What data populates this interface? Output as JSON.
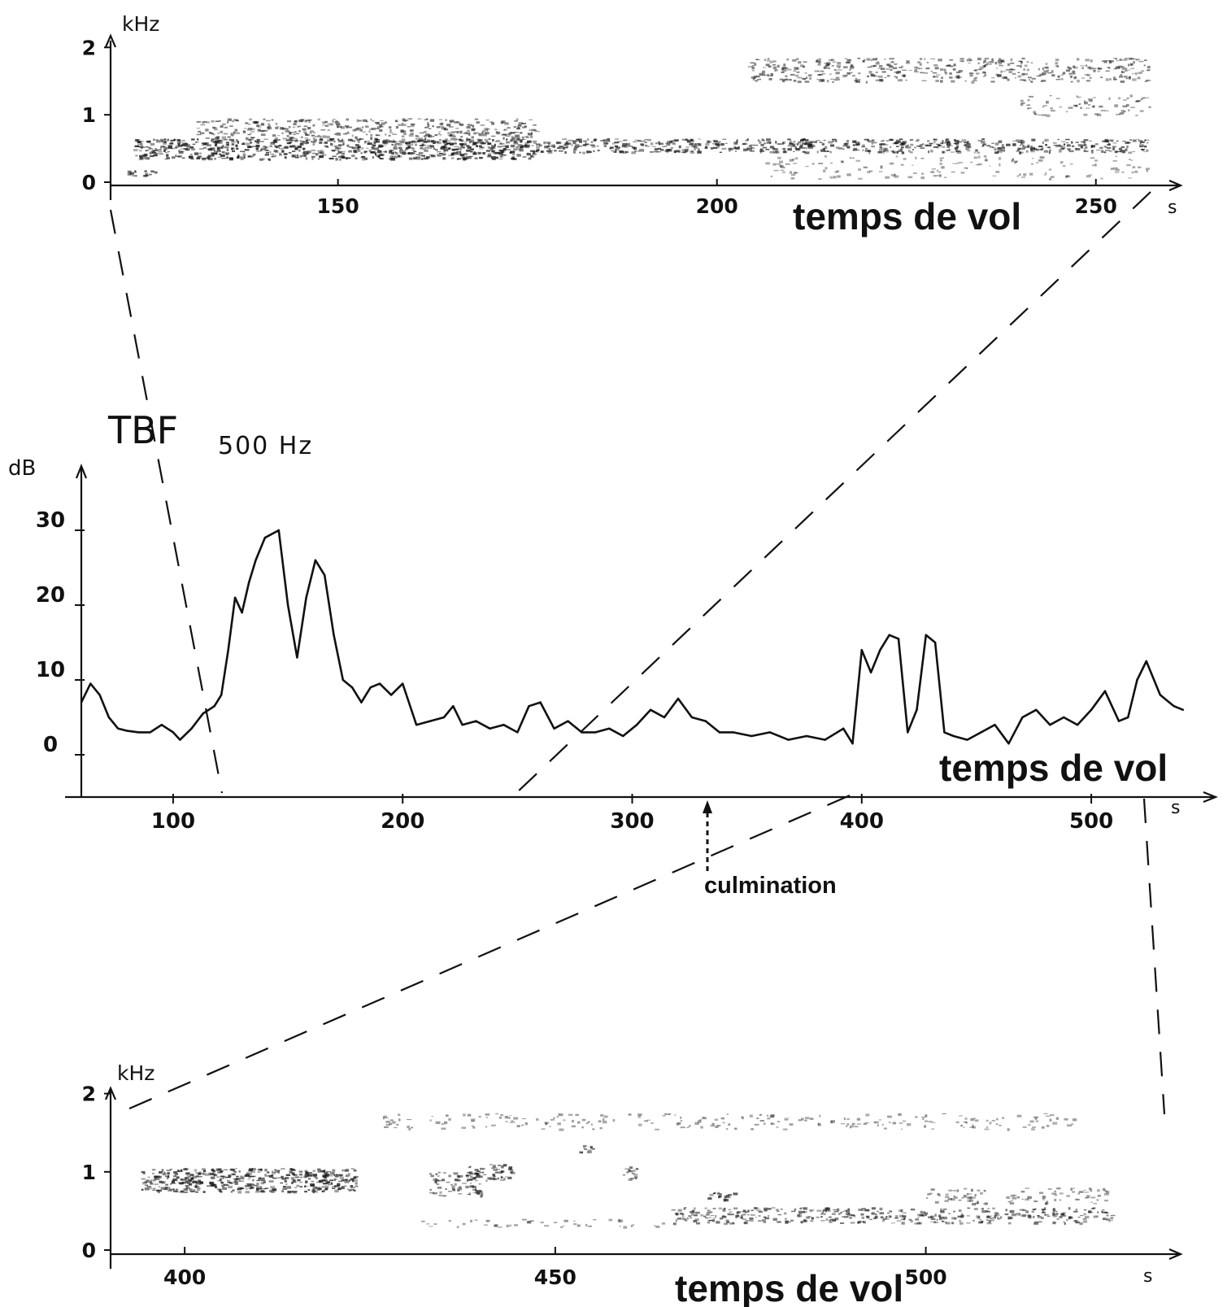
{
  "chart_data": [
    {
      "type": "heatmap",
      "ylabel": "kHz",
      "xlabel": "temps de vol",
      "x_unit": "s",
      "x_ticks": [
        "150",
        "200",
        "250"
      ],
      "y_ticks": [
        "0",
        "1",
        "2"
      ],
      "xlim": [
        120,
        257
      ],
      "ylim": [
        0,
        2.1
      ],
      "bands": [
        {
          "x": [
            122,
            126
          ],
          "y": [
            0.1,
            0.2
          ],
          "intensity": 0.7
        },
        {
          "x": [
            123,
            176
          ],
          "y": [
            0.35,
            0.65
          ],
          "intensity": 0.85
        },
        {
          "x": [
            131,
            176
          ],
          "y": [
            0.6,
            0.95
          ],
          "intensity": 0.5
        },
        {
          "x": [
            176,
            257
          ],
          "y": [
            0.45,
            0.65
          ],
          "intensity": 0.75
        },
        {
          "x": [
            204,
            257
          ],
          "y": [
            1.5,
            1.85
          ],
          "intensity": 0.45
        },
        {
          "x": [
            240,
            257
          ],
          "y": [
            1.0,
            1.3
          ],
          "intensity": 0.25
        },
        {
          "x": [
            206,
            257
          ],
          "y": [
            0.05,
            0.4
          ],
          "intensity": 0.15
        }
      ]
    },
    {
      "type": "line",
      "title": "TBF",
      "subtitle": "500 Hz",
      "ylabel": "dB",
      "xlabel": "temps de vol",
      "x_unit": "s",
      "x_ticks": [
        "100",
        "200",
        "300",
        "400",
        "500"
      ],
      "y_ticks": [
        "0",
        "10",
        "20",
        "30"
      ],
      "xlim": [
        60,
        540
      ],
      "ylim": [
        -5,
        33
      ],
      "annotation": {
        "text": "culmination",
        "x": 332
      },
      "x": [
        60,
        64,
        68,
        72,
        76,
        80,
        85,
        90,
        95,
        100,
        103,
        108,
        113,
        118,
        121,
        124,
        127,
        130,
        133,
        136,
        140,
        146,
        150,
        154,
        158,
        162,
        166,
        170,
        174,
        178,
        182,
        186,
        190,
        195,
        200,
        206,
        212,
        218,
        222,
        226,
        232,
        238,
        244,
        250,
        255,
        260,
        266,
        272,
        278,
        284,
        290,
        296,
        302,
        308,
        314,
        320,
        326,
        332,
        338,
        344,
        352,
        360,
        368,
        376,
        384,
        392,
        396,
        400,
        404,
        408,
        412,
        416,
        420,
        424,
        428,
        432,
        436,
        440,
        446,
        452,
        458,
        464,
        470,
        476,
        482,
        488,
        494,
        500,
        506,
        512,
        516,
        520,
        524,
        530,
        536,
        540
      ],
      "y": [
        7,
        9.5,
        8,
        5,
        3.5,
        3.2,
        3,
        3,
        4,
        3,
        2,
        3.5,
        5.5,
        6.5,
        8,
        14,
        21,
        19,
        23,
        26,
        29,
        30,
        20,
        13,
        21,
        26,
        24,
        16,
        10,
        9,
        7,
        9,
        9.5,
        8,
        9.5,
        4,
        4.5,
        5,
        6.5,
        4,
        4.5,
        3.5,
        4,
        3,
        6.5,
        7,
        3.5,
        4.5,
        3,
        3,
        3.5,
        2.5,
        4,
        6,
        5,
        7.5,
        5,
        4.5,
        3,
        3,
        2.5,
        3,
        2,
        2.5,
        2,
        3.5,
        1.5,
        14,
        11,
        14,
        16,
        15.5,
        3,
        6,
        16,
        15,
        3,
        2.5,
        2,
        3,
        4,
        1.5,
        5,
        6,
        4,
        5,
        4,
        6,
        8.5,
        4.5,
        5,
        10,
        12.5,
        8,
        6.5,
        6
      ]
    },
    {
      "type": "heatmap",
      "ylabel": "kHz",
      "xlabel": "temps de vol",
      "x_unit": "s",
      "x_ticks": [
        "400",
        "450",
        "500"
      ],
      "y_ticks": [
        "0",
        "1",
        "2"
      ],
      "xlim": [
        390,
        530
      ],
      "ylim": [
        0,
        2.1
      ],
      "bands": [
        {
          "x": [
            394,
            423
          ],
          "y": [
            0.75,
            1.05
          ],
          "intensity": 0.85
        },
        {
          "x": [
            433,
            440
          ],
          "y": [
            0.7,
            1.0
          ],
          "intensity": 0.55
        },
        {
          "x": [
            438,
            444
          ],
          "y": [
            0.9,
            1.1
          ],
          "intensity": 0.75
        },
        {
          "x": [
            453,
            455
          ],
          "y": [
            1.25,
            1.35
          ],
          "intensity": 0.8
        },
        {
          "x": [
            459,
            461
          ],
          "y": [
            0.9,
            1.1
          ],
          "intensity": 0.6
        },
        {
          "x": [
            426,
            520
          ],
          "y": [
            1.55,
            1.75
          ],
          "intensity": 0.2
        },
        {
          "x": [
            465,
            525
          ],
          "y": [
            0.35,
            0.55
          ],
          "intensity": 0.55
        },
        {
          "x": [
            470,
            474
          ],
          "y": [
            0.65,
            0.75
          ],
          "intensity": 0.7
        },
        {
          "x": [
            500,
            525
          ],
          "y": [
            0.6,
            0.8
          ],
          "intensity": 0.3
        },
        {
          "x": [
            430,
            465
          ],
          "y": [
            0.3,
            0.4
          ],
          "intensity": 0.2
        }
      ]
    }
  ]
}
